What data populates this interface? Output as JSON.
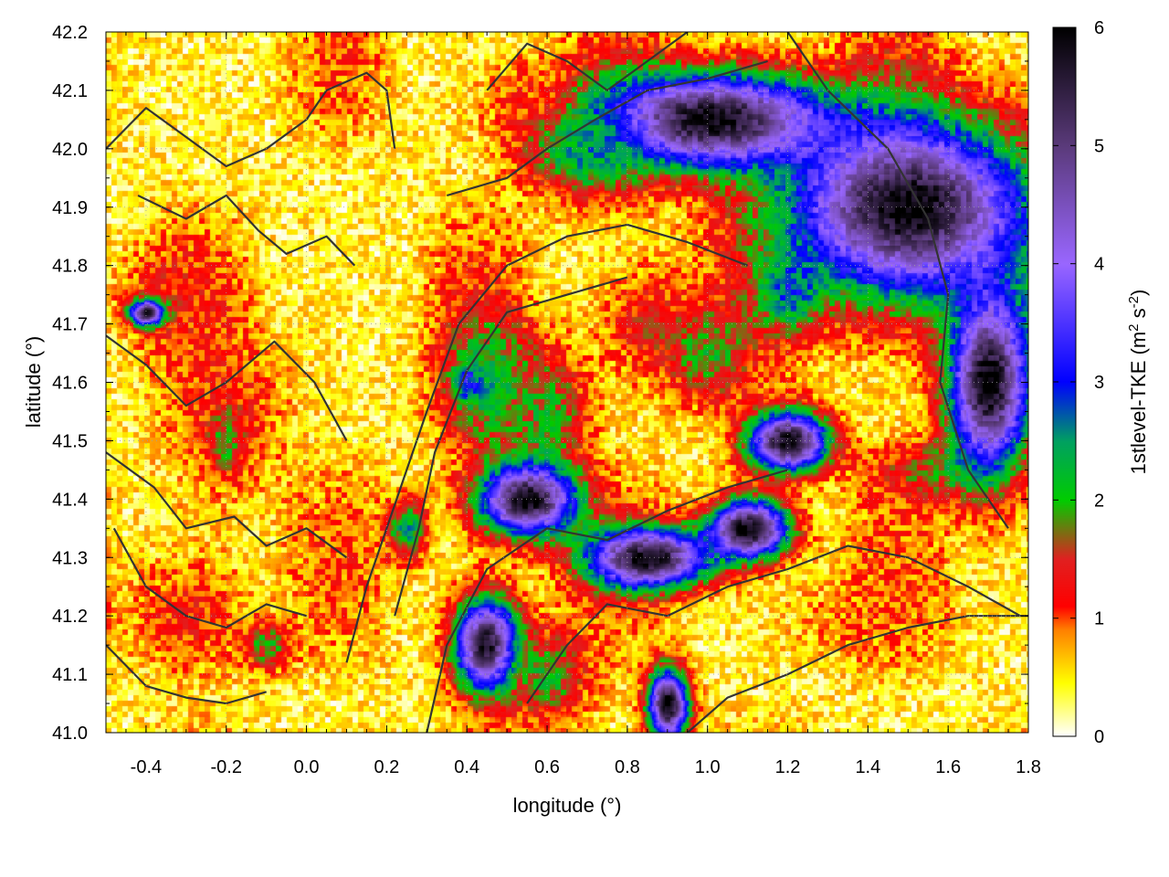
{
  "chart_data": {
    "type": "heatmap",
    "xlabel": "longitude (°)",
    "ylabel": "latitude (°)",
    "colorbar_label": "1stlevel-TKE (m² s⁻²)",
    "colorbar_label_parts": {
      "base": "1stlevel-TKE (m",
      "sup1": "2",
      "mid": " s",
      "sup2": "-2",
      "end": ")"
    },
    "xlim": [
      -0.5,
      1.8
    ],
    "ylim": [
      41.0,
      42.2
    ],
    "clim": [
      0,
      6
    ],
    "x_ticks": [
      -0.4,
      -0.2,
      0.0,
      0.2,
      0.4,
      0.6,
      0.8,
      1.0,
      1.2,
      1.4,
      1.6,
      1.8
    ],
    "x_tick_labels": [
      "-0.4",
      "-0.2",
      "0.0",
      "0.2",
      "0.4",
      "0.6",
      "0.8",
      "1.0",
      "1.2",
      "1.4",
      "1.6",
      "1.8"
    ],
    "y_ticks": [
      41.0,
      41.1,
      41.2,
      41.3,
      41.4,
      41.5,
      41.6,
      41.7,
      41.8,
      41.9,
      42.0,
      42.1,
      42.2
    ],
    "y_tick_labels": [
      "41.0",
      "41.1",
      "41.2",
      "41.3",
      "41.4",
      "41.5",
      "41.6",
      "41.7",
      "41.8",
      "41.9",
      "42.0",
      "42.1",
      "42.2"
    ],
    "colorbar_ticks": [
      0,
      1,
      2,
      3,
      4,
      5,
      6
    ],
    "colorbar_tick_labels": [
      "0",
      "1",
      "2",
      "3",
      "4",
      "5",
      "6"
    ],
    "colormap": [
      [
        0.0,
        "#ffffff"
      ],
      [
        0.45,
        "#ffff00"
      ],
      [
        0.9,
        "#ff8000"
      ],
      [
        1.1,
        "#ff0000"
      ],
      [
        1.5,
        "#e02020"
      ],
      [
        2.0,
        "#00cc00"
      ],
      [
        2.5,
        "#00a060"
      ],
      [
        3.0,
        "#0000ff"
      ],
      [
        4.0,
        "#9966ff"
      ],
      [
        5.0,
        "#5a3a7a"
      ],
      [
        6.0,
        "#000000"
      ]
    ],
    "grid": true,
    "contours": true,
    "features": [
      {
        "lon": -0.35,
        "lat": 41.75,
        "tke": 1.3,
        "sx": 0.12,
        "sy": 0.08
      },
      {
        "lon": -0.2,
        "lat": 41.55,
        "tke": 1.2,
        "sx": 0.15,
        "sy": 0.15
      },
      {
        "lon": -0.3,
        "lat": 41.2,
        "tke": 1.2,
        "sx": 0.15,
        "sy": 0.1
      },
      {
        "lon": -0.4,
        "lat": 41.72,
        "tke": 6.0,
        "sx": 0.04,
        "sy": 0.02
      },
      {
        "lon": -0.2,
        "lat": 41.5,
        "tke": 2.0,
        "sx": 0.04,
        "sy": 0.05
      },
      {
        "lon": -0.1,
        "lat": 41.15,
        "tke": 2.0,
        "sx": 0.06,
        "sy": 0.04
      },
      {
        "lon": 0.45,
        "lat": 41.6,
        "tke": 2.3,
        "sx": 0.12,
        "sy": 0.12
      },
      {
        "lon": 0.4,
        "lat": 41.6,
        "tke": 3.2,
        "sx": 0.03,
        "sy": 0.03
      },
      {
        "lon": 0.6,
        "lat": 41.55,
        "tke": 2.0,
        "sx": 0.1,
        "sy": 0.1
      },
      {
        "lon": 0.85,
        "lat": 41.7,
        "tke": 1.3,
        "sx": 0.12,
        "sy": 0.1
      },
      {
        "lon": 1.0,
        "lat": 41.65,
        "tke": 2.0,
        "sx": 0.1,
        "sy": 0.08
      },
      {
        "lon": 1.2,
        "lat": 41.75,
        "tke": 2.3,
        "sx": 0.08,
        "sy": 0.06
      },
      {
        "lon": 0.55,
        "lat": 41.4,
        "tke": 6.0,
        "sx": 0.12,
        "sy": 0.06
      },
      {
        "lon": 0.45,
        "lat": 41.15,
        "tke": 6.0,
        "sx": 0.08,
        "sy": 0.08
      },
      {
        "lon": 0.85,
        "lat": 41.3,
        "tke": 6.0,
        "sx": 0.15,
        "sy": 0.05
      },
      {
        "lon": 1.1,
        "lat": 41.35,
        "tke": 6.0,
        "sx": 0.1,
        "sy": 0.05
      },
      {
        "lon": 1.2,
        "lat": 41.5,
        "tke": 6.0,
        "sx": 0.1,
        "sy": 0.05
      },
      {
        "lon": 1.55,
        "lat": 41.45,
        "tke": 1.6,
        "sx": 0.15,
        "sy": 0.05
      },
      {
        "lon": 1.5,
        "lat": 41.9,
        "tke": 6.0,
        "sx": 0.3,
        "sy": 0.15
      },
      {
        "lon": 1.7,
        "lat": 41.6,
        "tke": 6.0,
        "sx": 0.1,
        "sy": 0.15
      },
      {
        "lon": 1.0,
        "lat": 42.05,
        "tke": 6.0,
        "sx": 0.3,
        "sy": 0.08
      },
      {
        "lon": 0.7,
        "lat": 42.0,
        "tke": 2.5,
        "sx": 0.15,
        "sy": 0.08
      },
      {
        "lon": 0.55,
        "lat": 42.1,
        "tke": 1.0,
        "sx": 0.1,
        "sy": 0.06
      },
      {
        "lon": 1.4,
        "lat": 41.2,
        "tke": 0.9,
        "sx": 0.2,
        "sy": 0.08
      },
      {
        "lon": 0.25,
        "lat": 41.35,
        "tke": 2.5,
        "sx": 0.05,
        "sy": 0.05
      },
      {
        "lon": 0.6,
        "lat": 41.1,
        "tke": 2.0,
        "sx": 0.1,
        "sy": 0.08
      },
      {
        "lon": 0.9,
        "lat": 41.05,
        "tke": 6.0,
        "sx": 0.05,
        "sy": 0.06
      }
    ],
    "contour_lines": [
      [
        [
          -0.5,
          42.0
        ],
        [
          -0.4,
          42.07
        ],
        [
          -0.3,
          42.02
        ],
        [
          -0.2,
          41.97
        ],
        [
          -0.1,
          42.0
        ],
        [
          0.0,
          42.05
        ],
        [
          0.05,
          42.1
        ],
        [
          0.15,
          42.13
        ],
        [
          0.2,
          42.1
        ],
        [
          0.22,
          42.0
        ]
      ],
      [
        [
          -0.42,
          41.92
        ],
        [
          -0.3,
          41.88
        ],
        [
          -0.2,
          41.92
        ],
        [
          -0.12,
          41.86
        ],
        [
          -0.05,
          41.82
        ],
        [
          0.05,
          41.85
        ],
        [
          0.12,
          41.8
        ]
      ],
      [
        [
          -0.5,
          41.68
        ],
        [
          -0.4,
          41.63
        ],
        [
          -0.3,
          41.56
        ],
        [
          -0.2,
          41.6
        ],
        [
          -0.08,
          41.67
        ],
        [
          0.02,
          41.6
        ],
        [
          0.1,
          41.5
        ]
      ],
      [
        [
          -0.5,
          41.48
        ],
        [
          -0.38,
          41.42
        ],
        [
          -0.3,
          41.35
        ],
        [
          -0.18,
          41.37
        ],
        [
          -0.1,
          41.32
        ],
        [
          0.0,
          41.35
        ],
        [
          0.1,
          41.3
        ]
      ],
      [
        [
          -0.48,
          41.35
        ],
        [
          -0.4,
          41.25
        ],
        [
          -0.3,
          41.2
        ],
        [
          -0.2,
          41.18
        ],
        [
          -0.1,
          41.22
        ],
        [
          0.0,
          41.2
        ]
      ],
      [
        [
          -0.5,
          41.15
        ],
        [
          -0.4,
          41.08
        ],
        [
          -0.3,
          41.06
        ],
        [
          -0.2,
          41.05
        ],
        [
          -0.1,
          41.07
        ]
      ],
      [
        [
          0.1,
          41.12
        ],
        [
          0.15,
          41.25
        ],
        [
          0.2,
          41.35
        ],
        [
          0.25,
          41.45
        ],
        [
          0.3,
          41.55
        ],
        [
          0.38,
          41.7
        ],
        [
          0.5,
          41.8
        ],
        [
          0.65,
          41.85
        ],
        [
          0.8,
          41.87
        ],
        [
          0.95,
          41.84
        ],
        [
          1.1,
          41.8
        ]
      ],
      [
        [
          0.22,
          41.2
        ],
        [
          0.28,
          41.35
        ],
        [
          0.32,
          41.48
        ],
        [
          0.4,
          41.62
        ],
        [
          0.5,
          41.72
        ],
        [
          0.65,
          41.75
        ],
        [
          0.8,
          41.78
        ]
      ],
      [
        [
          0.3,
          41.0
        ],
        [
          0.35,
          41.15
        ],
        [
          0.45,
          41.28
        ],
        [
          0.6,
          41.35
        ],
        [
          0.75,
          41.33
        ],
        [
          0.9,
          41.38
        ],
        [
          1.05,
          41.42
        ],
        [
          1.2,
          41.45
        ]
      ],
      [
        [
          0.55,
          41.05
        ],
        [
          0.65,
          41.15
        ],
        [
          0.75,
          41.22
        ],
        [
          0.9,
          41.2
        ],
        [
          1.05,
          41.25
        ],
        [
          1.2,
          41.28
        ],
        [
          1.35,
          41.32
        ],
        [
          1.5,
          41.3
        ],
        [
          1.65,
          41.25
        ],
        [
          1.78,
          41.2
        ]
      ],
      [
        [
          0.95,
          41.0
        ],
        [
          1.05,
          41.06
        ],
        [
          1.2,
          41.1
        ],
        [
          1.35,
          41.15
        ],
        [
          1.5,
          41.18
        ],
        [
          1.65,
          41.2
        ],
        [
          1.8,
          41.2
        ]
      ],
      [
        [
          0.35,
          41.92
        ],
        [
          0.5,
          41.95
        ],
        [
          0.6,
          42.0
        ],
        [
          0.72,
          42.05
        ],
        [
          0.85,
          42.1
        ],
        [
          1.0,
          42.12
        ],
        [
          1.15,
          42.15
        ]
      ],
      [
        [
          1.2,
          42.2
        ],
        [
          1.3,
          42.1
        ],
        [
          1.45,
          42.0
        ],
        [
          1.55,
          41.88
        ],
        [
          1.6,
          41.75
        ],
        [
          1.58,
          41.6
        ],
        [
          1.65,
          41.45
        ],
        [
          1.75,
          41.35
        ]
      ],
      [
        [
          0.45,
          42.1
        ],
        [
          0.55,
          42.18
        ],
        [
          0.65,
          42.15
        ],
        [
          0.75,
          42.1
        ],
        [
          0.85,
          42.15
        ],
        [
          0.95,
          42.2
        ]
      ]
    ]
  }
}
